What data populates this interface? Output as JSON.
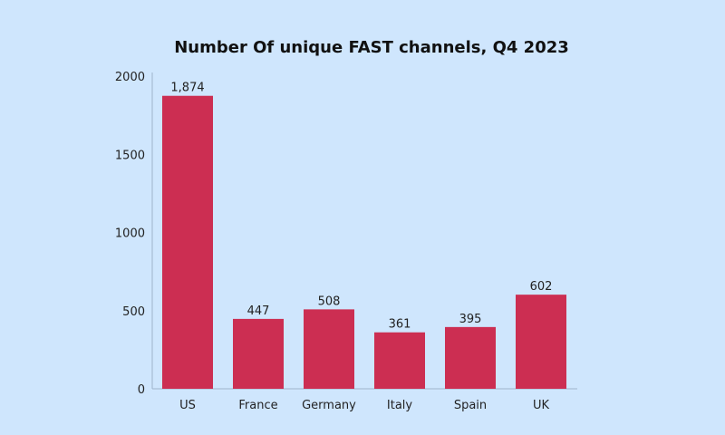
{
  "chart_data": {
    "type": "bar",
    "title": "Number Of unique FAST channels, Q4 2023",
    "xlabel": "",
    "ylabel": "",
    "categories": [
      "US",
      "France",
      "Germany",
      "Italy",
      "Spain",
      "UK"
    ],
    "values": [
      1874,
      447,
      508,
      361,
      395,
      602
    ],
    "value_labels": [
      "1,874",
      "447",
      "508",
      "361",
      "395",
      "602"
    ],
    "ylim": [
      0,
      2000
    ],
    "yticks": [
      0,
      500,
      1000,
      1500,
      2000
    ],
    "ytick_labels": [
      "0",
      "500",
      "1000",
      "1500",
      "2000"
    ],
    "grid": false,
    "legend": "none",
    "colors": {
      "bar": "#cc2e52",
      "background": "#cfe6fd",
      "axis": "#9fb4cc"
    }
  }
}
